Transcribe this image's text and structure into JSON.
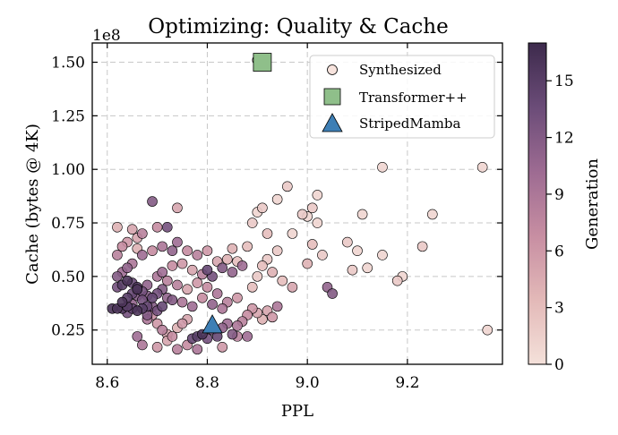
{
  "chart_data": {
    "type": "scatter",
    "title": "Optimizing: Quality & Cache",
    "xlabel": "PPL",
    "ylabel": "Cache (bytes @ 4K)",
    "y_offset_label": "1e8",
    "y_scale": 100000000,
    "xlim": [
      8.57,
      9.39
    ],
    "ylim": [
      0.09,
      1.59
    ],
    "xticks": [
      8.6,
      8.8,
      9.0,
      9.2
    ],
    "xtick_labels": [
      "8.6",
      "8.8",
      "9.0",
      "9.2"
    ],
    "yticks": [
      0.25,
      0.5,
      0.75,
      1.0,
      1.25,
      1.5
    ],
    "ytick_labels": [
      "0.25",
      "0.50",
      "0.75",
      "1.00",
      "1.25",
      "1.50"
    ],
    "grid": true,
    "legend_position": "upper right",
    "colorbar": {
      "label": "Generation",
      "min": 0,
      "max": 17,
      "ticks": [
        0,
        3,
        6,
        9,
        12,
        15
      ],
      "tick_labels": [
        "0",
        "3",
        "6",
        "9",
        "12",
        "15"
      ],
      "colors": [
        "#f4e1da",
        "#e3b9b8",
        "#c78ea2",
        "#9d6b92",
        "#6b4c78",
        "#3d2a4c"
      ]
    },
    "series": [
      {
        "name": "Synthesized",
        "marker": "circle",
        "points": [
          [
            8.61,
            0.35,
            16
          ],
          [
            8.62,
            0.35,
            16
          ],
          [
            8.63,
            0.35,
            15
          ],
          [
            8.64,
            0.36,
            15
          ],
          [
            8.65,
            0.35,
            14
          ],
          [
            8.66,
            0.34,
            16
          ],
          [
            8.67,
            0.35,
            15
          ],
          [
            8.68,
            0.36,
            14
          ],
          [
            8.63,
            0.38,
            16
          ],
          [
            8.64,
            0.4,
            15
          ],
          [
            8.65,
            0.42,
            14
          ],
          [
            8.66,
            0.44,
            16
          ],
          [
            8.62,
            0.45,
            13
          ],
          [
            8.63,
            0.46,
            15
          ],
          [
            8.64,
            0.48,
            16
          ],
          [
            8.65,
            0.47,
            14
          ],
          [
            8.66,
            0.45,
            15
          ],
          [
            8.67,
            0.43,
            13
          ],
          [
            8.68,
            0.41,
            12
          ],
          [
            8.69,
            0.4,
            14
          ],
          [
            8.7,
            0.42,
            13
          ],
          [
            8.71,
            0.44,
            12
          ],
          [
            8.72,
            0.4,
            11
          ],
          [
            8.73,
            0.39,
            12
          ],
          [
            8.62,
            0.5,
            12
          ],
          [
            8.63,
            0.52,
            10
          ],
          [
            8.64,
            0.54,
            11
          ],
          [
            8.65,
            0.56,
            9
          ],
          [
            8.62,
            0.6,
            8
          ],
          [
            8.63,
            0.64,
            7
          ],
          [
            8.64,
            0.66,
            6
          ],
          [
            8.66,
            0.68,
            5
          ],
          [
            8.62,
            0.73,
            4
          ],
          [
            8.65,
            0.72,
            5
          ],
          [
            8.67,
            0.7,
            8
          ],
          [
            8.7,
            0.73,
            7
          ],
          [
            8.69,
            0.85,
            12
          ],
          [
            8.74,
            0.82,
            5
          ],
          [
            8.72,
            0.73,
            13
          ],
          [
            8.67,
            0.6,
            10
          ],
          [
            8.69,
            0.62,
            7
          ],
          [
            8.71,
            0.64,
            9
          ],
          [
            8.73,
            0.62,
            11
          ],
          [
            8.74,
            0.66,
            10
          ],
          [
            8.76,
            0.62,
            7
          ],
          [
            8.78,
            0.6,
            8
          ],
          [
            8.8,
            0.62,
            6
          ],
          [
            8.82,
            0.57,
            5
          ],
          [
            8.84,
            0.58,
            4
          ],
          [
            8.86,
            0.57,
            3
          ],
          [
            8.8,
            0.53,
            14
          ],
          [
            8.81,
            0.5,
            13
          ],
          [
            8.83,
            0.54,
            12
          ],
          [
            8.85,
            0.52,
            11
          ],
          [
            8.87,
            0.55,
            10
          ],
          [
            8.75,
            0.56,
            6
          ],
          [
            8.77,
            0.53,
            5
          ],
          [
            8.79,
            0.51,
            8
          ],
          [
            8.68,
            0.3,
            9
          ],
          [
            8.69,
            0.32,
            7
          ],
          [
            8.7,
            0.28,
            6
          ],
          [
            8.71,
            0.25,
            8
          ],
          [
            8.72,
            0.23,
            5
          ],
          [
            8.73,
            0.22,
            7
          ],
          [
            8.74,
            0.26,
            4
          ],
          [
            8.75,
            0.28,
            6
          ],
          [
            8.76,
            0.3,
            5
          ],
          [
            8.77,
            0.21,
            14
          ],
          [
            8.78,
            0.22,
            15
          ],
          [
            8.79,
            0.23,
            16
          ],
          [
            8.8,
            0.21,
            13
          ],
          [
            8.81,
            0.25,
            12
          ],
          [
            8.82,
            0.22,
            14
          ],
          [
            8.83,
            0.26,
            11
          ],
          [
            8.84,
            0.28,
            10
          ],
          [
            8.85,
            0.23,
            12
          ],
          [
            8.86,
            0.27,
            9
          ],
          [
            8.87,
            0.29,
            8
          ],
          [
            8.88,
            0.32,
            7
          ],
          [
            8.89,
            0.35,
            6
          ],
          [
            8.9,
            0.33,
            5
          ],
          [
            8.91,
            0.3,
            4
          ],
          [
            8.92,
            0.34,
            5
          ],
          [
            8.93,
            0.31,
            6
          ],
          [
            8.94,
            0.36,
            9
          ],
          [
            8.66,
            0.22,
            10
          ],
          [
            8.67,
            0.18,
            9
          ],
          [
            8.7,
            0.17,
            6
          ],
          [
            8.72,
            0.2,
            5
          ],
          [
            8.74,
            0.16,
            8
          ],
          [
            8.76,
            0.18,
            7
          ],
          [
            8.78,
            0.16,
            9
          ],
          [
            8.83,
            0.17,
            6
          ],
          [
            8.86,
            0.22,
            8
          ],
          [
            8.88,
            0.22,
            10
          ],
          [
            8.84,
            0.38,
            8
          ],
          [
            8.86,
            0.4,
            6
          ],
          [
            8.82,
            0.42,
            9
          ],
          [
            8.8,
            0.45,
            7
          ],
          [
            8.78,
            0.47,
            6
          ],
          [
            8.76,
            0.44,
            5
          ],
          [
            8.74,
            0.46,
            8
          ],
          [
            8.75,
            0.38,
            9
          ],
          [
            8.77,
            0.36,
            10
          ],
          [
            8.79,
            0.4,
            7
          ],
          [
            8.81,
            0.37,
            11
          ],
          [
            8.83,
            0.35,
            9
          ],
          [
            8.89,
            0.45,
            3
          ],
          [
            8.9,
            0.5,
            2
          ],
          [
            8.91,
            0.55,
            3
          ],
          [
            8.92,
            0.58,
            2
          ],
          [
            8.93,
            0.52,
            4
          ],
          [
            8.95,
            0.48,
            3
          ],
          [
            8.97,
            0.45,
            5
          ],
          [
            8.89,
            0.75,
            2
          ],
          [
            8.9,
            0.8,
            1
          ],
          [
            8.91,
            0.82,
            2
          ],
          [
            8.92,
            0.7,
            3
          ],
          [
            8.94,
            0.62,
            2
          ],
          [
            8.97,
            0.7,
            1
          ],
          [
            8.99,
            0.79,
            2
          ],
          [
            9.0,
            0.78,
            1
          ],
          [
            9.01,
            0.82,
            2
          ],
          [
            9.02,
            0.88,
            1
          ],
          [
            9.02,
            0.75,
            1
          ],
          [
            9.01,
            0.65,
            3
          ],
          [
            9.0,
            0.56,
            4
          ],
          [
            9.03,
            0.6,
            2
          ],
          [
            9.04,
            0.45,
            11
          ],
          [
            9.05,
            0.42,
            12
          ],
          [
            9.08,
            0.66,
            2
          ],
          [
            9.1,
            0.62,
            1
          ],
          [
            9.09,
            0.53,
            2
          ],
          [
            9.12,
            0.54,
            1
          ],
          [
            9.11,
            0.79,
            1
          ],
          [
            9.15,
            0.6,
            1
          ],
          [
            9.18,
            0.48,
            2
          ],
          [
            9.19,
            0.5,
            1
          ],
          [
            9.23,
            0.64,
            2
          ],
          [
            9.25,
            0.79,
            1
          ],
          [
            9.15,
            1.01,
            1
          ],
          [
            9.35,
            1.01,
            1
          ],
          [
            9.36,
            0.25,
            1
          ],
          [
            8.9,
            1.51,
            1
          ],
          [
            8.94,
            0.86,
            1
          ],
          [
            8.96,
            0.92,
            2
          ],
          [
            8.88,
            0.64,
            3
          ],
          [
            8.85,
            0.63,
            4
          ],
          [
            8.7,
            0.5,
            9
          ],
          [
            8.71,
            0.52,
            10
          ],
          [
            8.72,
            0.48,
            8
          ],
          [
            8.73,
            0.55,
            7
          ],
          [
            8.66,
            0.63,
            4
          ],
          [
            8.68,
            0.46,
            11
          ],
          [
            8.69,
            0.36,
            12
          ],
          [
            8.7,
            0.34,
            13
          ],
          [
            8.71,
            0.36,
            14
          ],
          [
            8.67,
            0.39,
            13
          ],
          [
            8.66,
            0.41,
            12
          ],
          [
            8.65,
            0.37,
            11
          ],
          [
            8.64,
            0.33,
            13
          ],
          [
            8.68,
            0.32,
            12
          ]
        ]
      },
      {
        "name": "Transformer++",
        "marker": "square",
        "color": "#8fbf8a",
        "points": [
          [
            8.91,
            1.5
          ]
        ]
      },
      {
        "name": "StripedMamba",
        "marker": "triangle",
        "color": "#3e7fb5",
        "points": [
          [
            8.81,
            0.27
          ]
        ]
      }
    ]
  }
}
